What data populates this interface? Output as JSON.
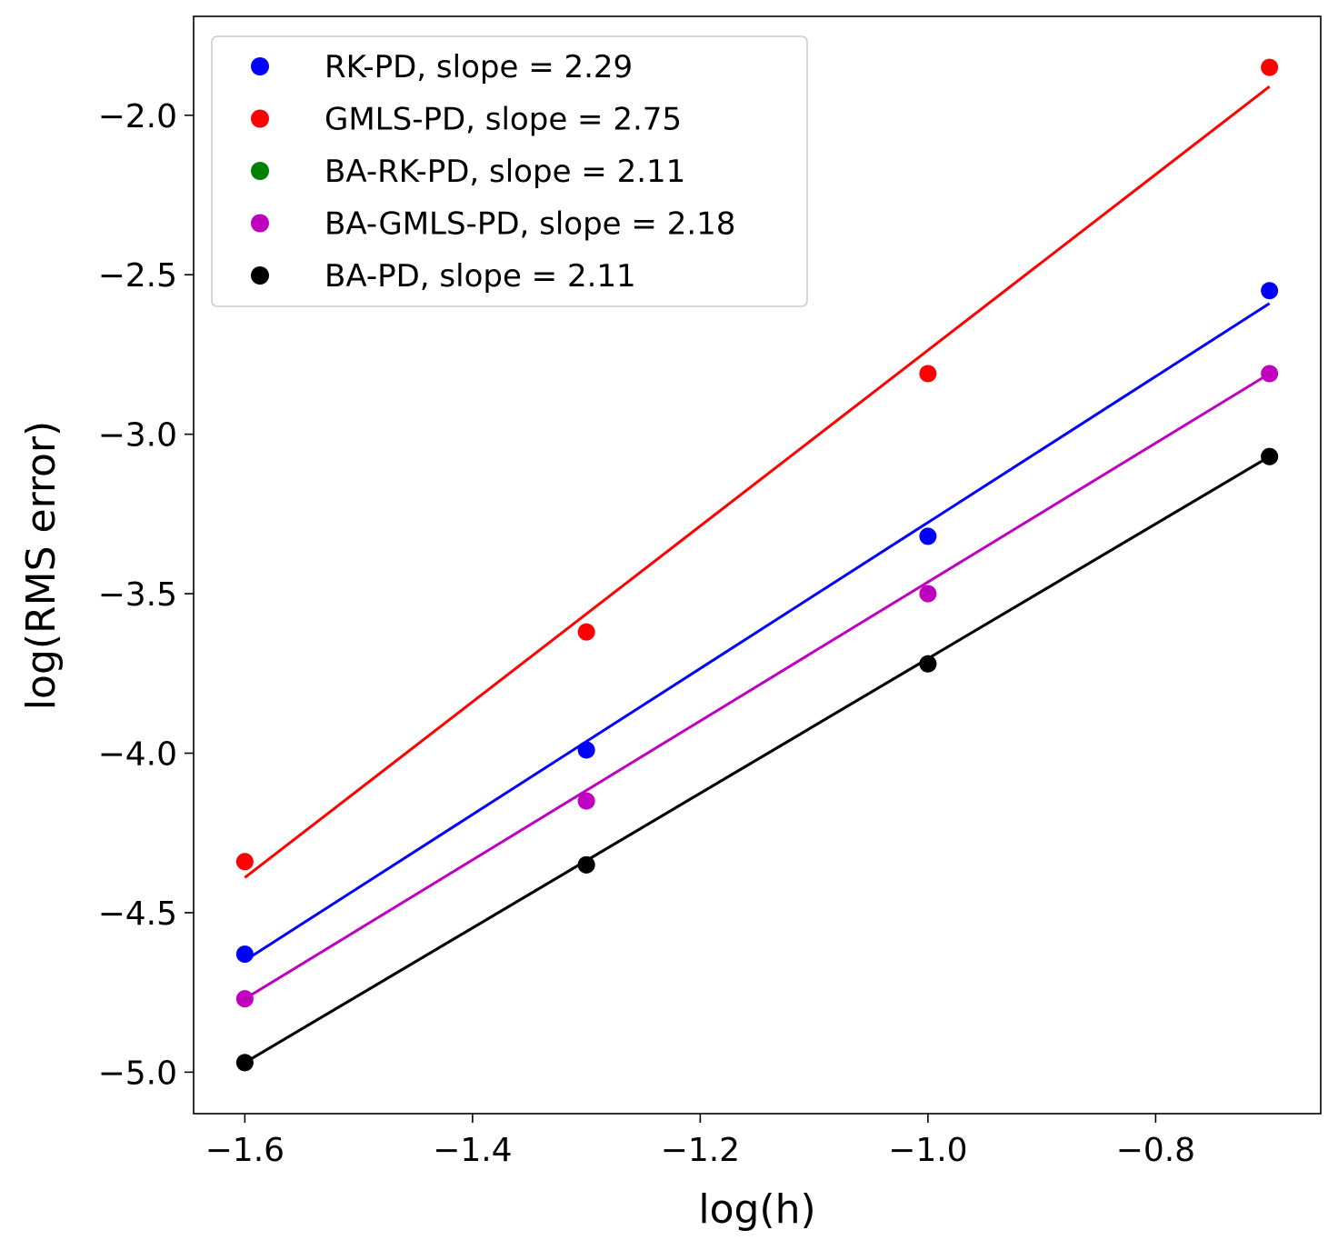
{
  "chart_data": {
    "type": "scatter",
    "title": "",
    "xlabel": "log(h)",
    "ylabel": "log(RMS error)",
    "xlim": [
      -1.645,
      -0.655
    ],
    "ylim": [
      -5.13,
      -1.69
    ],
    "xticks": [
      -1.6,
      -1.4,
      -1.2,
      -1.0,
      -0.8
    ],
    "xtick_labels": [
      "−1.6",
      "−1.4",
      "−1.2",
      "−1.0",
      "−0.8"
    ],
    "yticks": [
      -5.0,
      -4.5,
      -4.0,
      -3.5,
      -3.0,
      -2.5,
      -2.0
    ],
    "ytick_labels": [
      "−5.0",
      "−4.5",
      "−4.0",
      "−3.5",
      "−3.0",
      "−2.5",
      "−2.0"
    ],
    "grid": false,
    "legend_position": "top-left",
    "series": [
      {
        "name": "RK-PD",
        "legend_label": "RK-PD, slope = 2.29",
        "color": "#0000ff",
        "x": [
          -1.6,
          -1.3,
          -1.0,
          -0.7
        ],
        "y": [
          -4.63,
          -3.99,
          -3.32,
          -2.55
        ],
        "fit": {
          "slope": 2.29,
          "x": [
            -1.6,
            -0.7
          ],
          "y": [
            -4.65,
            -2.59
          ]
        }
      },
      {
        "name": "GMLS-PD",
        "legend_label": "GMLS-PD, slope = 2.75",
        "color": "#ff0000",
        "x": [
          -1.6,
          -1.3,
          -1.0,
          -0.7
        ],
        "y": [
          -4.34,
          -3.62,
          -2.81,
          -1.85
        ],
        "fit": {
          "slope": 2.75,
          "x": [
            -1.6,
            -0.7
          ],
          "y": [
            -4.39,
            -1.91
          ]
        }
      },
      {
        "name": "BA-RK-PD",
        "legend_label": "BA-RK-PD, slope = 2.11",
        "color": "#008000",
        "x": [
          -1.6,
          -1.3,
          -1.0,
          -0.7
        ],
        "y": [
          -4.97,
          -4.35,
          -3.72,
          -3.07
        ],
        "fit": {
          "slope": 2.11,
          "x": [
            -1.6,
            -0.7
          ],
          "y": [
            -4.97,
            -3.07
          ]
        }
      },
      {
        "name": "BA-GMLS-PD",
        "legend_label": "BA-GMLS-PD, slope = 2.18",
        "color": "#bf00bf",
        "x": [
          -1.6,
          -1.3,
          -1.0,
          -0.7
        ],
        "y": [
          -4.77,
          -4.15,
          -3.5,
          -2.81
        ],
        "fit": {
          "slope": 2.18,
          "x": [
            -1.6,
            -0.7
          ],
          "y": [
            -4.77,
            -2.81
          ]
        }
      },
      {
        "name": "BA-PD",
        "legend_label": "BA-PD, slope = 2.11",
        "color": "#000000",
        "x": [
          -1.6,
          -1.3,
          -1.0,
          -0.7
        ],
        "y": [
          -4.97,
          -4.35,
          -3.72,
          -3.07
        ],
        "fit": {
          "slope": 2.11,
          "x": [
            -1.6,
            -0.7
          ],
          "y": [
            -4.97,
            -3.07
          ]
        }
      }
    ]
  }
}
